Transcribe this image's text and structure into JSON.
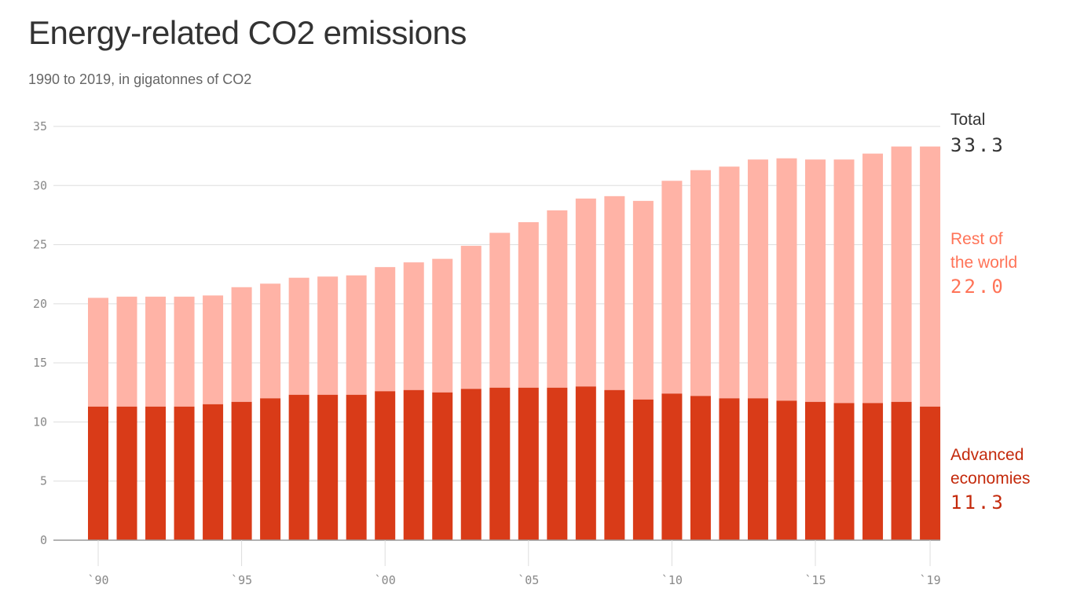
{
  "title": "Energy-related CO2 emissions",
  "subtitle": "1990 to 2019, in gigatonnes of CO2",
  "colors": {
    "advanced": "#d93b18",
    "rest": "#ffb3a6",
    "total_label": "#333333",
    "rest_label": "#ff7357",
    "advanced_label": "#c42a0c"
  },
  "labels": {
    "total": {
      "name": "Total",
      "value": "33.3"
    },
    "rest": {
      "name_line1": "Rest of",
      "name_line2": "the world",
      "value": "22.0"
    },
    "advanced": {
      "name_line1": "Advanced",
      "name_line2": "economies",
      "value": "11.3"
    }
  },
  "chart_data": {
    "type": "bar",
    "stacked": true,
    "title": "Energy-related CO2 emissions",
    "subtitle": "1990 to 2019, in gigatonnes of CO2",
    "x": [
      1990,
      1991,
      1992,
      1993,
      1994,
      1995,
      1996,
      1997,
      1998,
      1999,
      2000,
      2001,
      2002,
      2003,
      2004,
      2005,
      2006,
      2007,
      2008,
      2009,
      2010,
      2011,
      2012,
      2013,
      2014,
      2015,
      2016,
      2017,
      2018,
      2019
    ],
    "x_tick_labels": [
      "`90",
      "`95",
      "`00",
      "`05",
      "`10",
      "`15",
      "`19"
    ],
    "x_tick_years": [
      1990,
      1995,
      2000,
      2005,
      2010,
      2015,
      2019
    ],
    "y_ticks": [
      0,
      5,
      10,
      15,
      20,
      25,
      30,
      35
    ],
    "ylim": [
      0,
      35
    ],
    "grid": true,
    "series": [
      {
        "name": "Advanced economies",
        "values": [
          11.3,
          11.3,
          11.3,
          11.3,
          11.5,
          11.7,
          12.0,
          12.3,
          12.3,
          12.3,
          12.6,
          12.7,
          12.5,
          12.8,
          12.9,
          12.9,
          12.9,
          13.0,
          12.7,
          11.9,
          12.4,
          12.2,
          12.0,
          12.0,
          11.8,
          11.7,
          11.6,
          11.6,
          11.7,
          11.3
        ]
      },
      {
        "name": "Rest of the world",
        "values": [
          9.2,
          9.3,
          9.3,
          9.3,
          9.2,
          9.7,
          9.7,
          9.9,
          10.0,
          10.1,
          10.5,
          10.8,
          11.3,
          12.1,
          13.1,
          14.0,
          15.0,
          15.9,
          16.4,
          16.8,
          18.0,
          19.1,
          19.6,
          20.2,
          20.5,
          20.5,
          20.6,
          21.1,
          21.6,
          22.0
        ]
      }
    ],
    "totals": [
      20.5,
      20.6,
      20.6,
      20.6,
      20.7,
      21.4,
      21.7,
      22.2,
      22.3,
      22.4,
      23.1,
      23.5,
      23.8,
      24.9,
      26.0,
      26.9,
      27.9,
      28.9,
      29.1,
      28.7,
      30.4,
      31.3,
      31.6,
      32.2,
      32.3,
      32.2,
      32.2,
      32.7,
      33.3,
      33.3
    ]
  }
}
